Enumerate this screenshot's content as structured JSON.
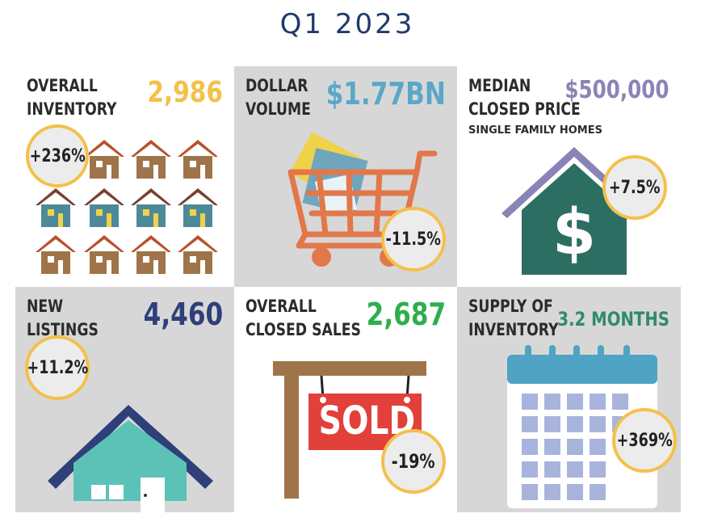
{
  "title": "Q1 2023",
  "colors": {
    "title": "#1f3a6b",
    "inventory_value": "#f4c04a",
    "dollar_value": "#5aa7c8",
    "median_value": "#8a84b6",
    "listings_value": "#2e3f7a",
    "sales_value": "#2fae4c",
    "supply_value": "#2f8a6f",
    "badge_ring": "#f4c04a"
  },
  "cards": {
    "inventory": {
      "label_line1": "OVERALL",
      "label_line2": "INVENTORY",
      "value": "2,986",
      "change": "+236%",
      "icon": "houses-icon"
    },
    "dollar": {
      "label_line1": "DOLLAR",
      "label_line2": "VOLUME",
      "value": "$1.77BN",
      "change": "-11.5%",
      "icon": "shopping-cart-icon"
    },
    "median": {
      "label_line1": "MEDIAN",
      "label_line2": "CLOSED PRICE",
      "value": "$500,000",
      "subtitle": "SINGLE FAMILY HOMES",
      "change": "+7.5%",
      "icon": "house-dollar-icon"
    },
    "listings": {
      "label_line1": "NEW",
      "label_line2": "LISTINGS",
      "value": "4,460",
      "change": "+11.2%",
      "icon": "house-icon"
    },
    "sales": {
      "label_line1": "OVERALL",
      "label_line2": "CLOSED SALES",
      "value": "2,687",
      "sign_text": "SOLD",
      "change": "-19%",
      "icon": "sold-sign-icon"
    },
    "supply": {
      "label_line1": "SUPPLY OF",
      "label_line2": "INVENTORY",
      "value": "3.2 MONTHS",
      "change": "+369%",
      "icon": "calendar-icon"
    }
  }
}
